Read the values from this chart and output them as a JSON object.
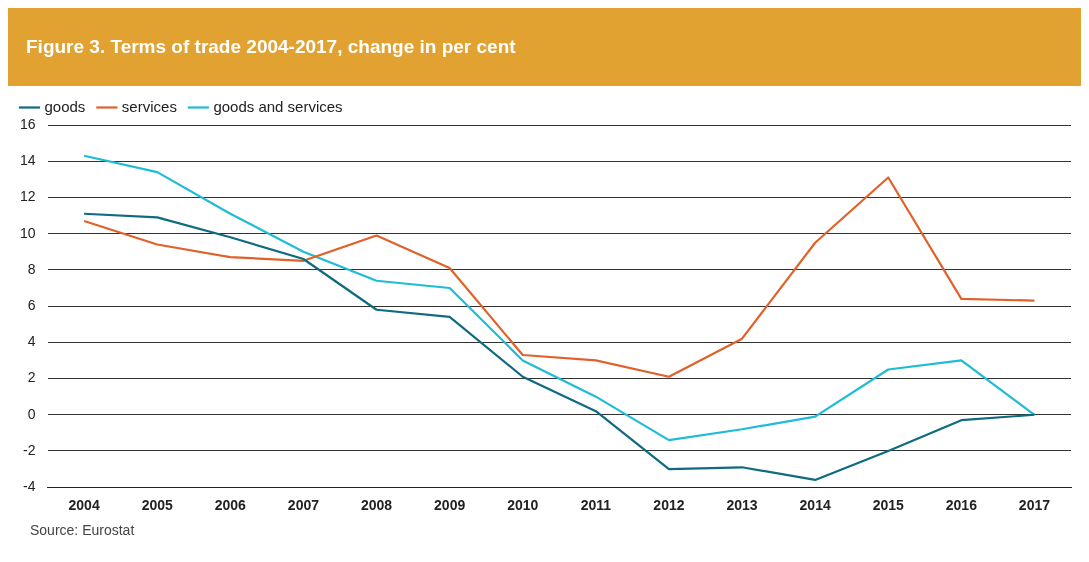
{
  "chart_data": {
    "type": "line",
    "title": "Figure 3. Terms of trade 2004-2017, change in per cent",
    "categories": [
      "2004",
      "2005",
      "2006",
      "2007",
      "2008",
      "2009",
      "2010",
      "2011",
      "2012",
      "2013",
      "2014",
      "2015",
      "2016",
      "2017"
    ],
    "series": [
      {
        "name": "goods",
        "color": "#0f6b7f",
        "values": [
          11.1,
          10.9,
          9.8,
          8.6,
          5.8,
          5.4,
          2.1,
          0.2,
          -3.0,
          -2.9,
          -3.6,
          -2.0,
          -0.3,
          0
        ]
      },
      {
        "name": "services",
        "color": "#e0612a",
        "values": [
          10.7,
          9.4,
          8.7,
          8.5,
          9.9,
          8.1,
          3.3,
          3.0,
          2.1,
          4.2,
          9.5,
          13.1,
          6.4,
          6.3
        ]
      },
      {
        "name": "goods and services",
        "color": "#1ebcd6",
        "values": [
          14.3,
          13.4,
          11.1,
          9.0,
          7.4,
          7.0,
          3.0,
          1.0,
          -1.4,
          -0.8,
          -0.1,
          2.5,
          3.0,
          0
        ]
      }
    ],
    "ylim": [
      -4,
      16
    ],
    "yticks": [
      -4,
      -2,
      0,
      2,
      4,
      6,
      8,
      10,
      12,
      14,
      16
    ],
    "grid": "y",
    "legend": "top left",
    "marker": "none",
    "line_style": "solid",
    "annotations": [
      "Source: Eurostat"
    ]
  }
}
